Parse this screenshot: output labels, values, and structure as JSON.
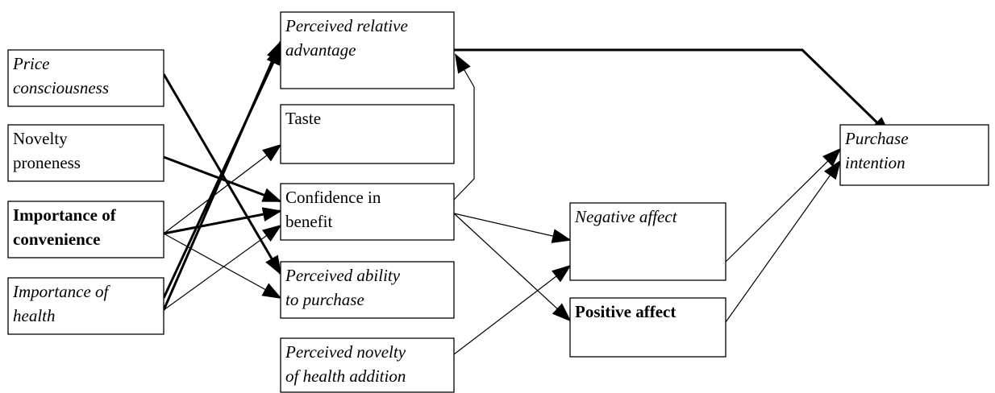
{
  "nodes": [
    {
      "lines": [
        "Price",
        "consciousness"
      ]
    },
    {
      "lines": [
        "Novelty",
        "proneness"
      ]
    },
    {
      "lines": [
        "Importance of",
        "convenience"
      ]
    },
    {
      "lines": [
        "Importance of",
        "health"
      ]
    },
    {
      "lines": [
        "Perceived relative",
        "advantage"
      ]
    },
    {
      "lines": [
        "Taste"
      ]
    },
    {
      "lines": [
        "Confidence in",
        "benefit"
      ]
    },
    {
      "lines": [
        "Perceived ability",
        "to purchase"
      ]
    },
    {
      "lines": [
        "Perceived novelty",
        "of health addition"
      ]
    },
    {
      "lines": [
        "Negative affect"
      ]
    },
    {
      "lines": [
        "Positive affect"
      ]
    },
    {
      "lines": [
        "Purchase",
        "intention"
      ]
    }
  ]
}
